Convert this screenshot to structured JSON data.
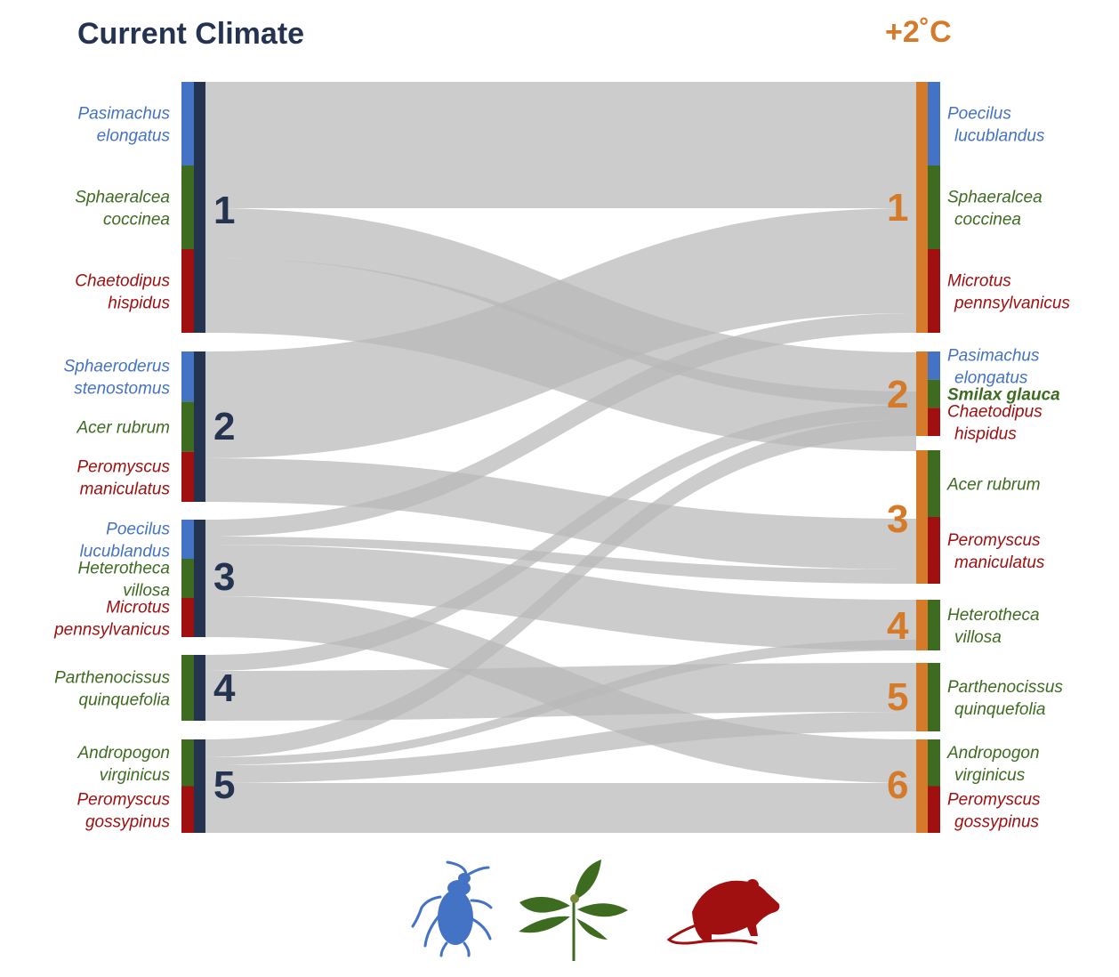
{
  "titles": {
    "current": "Current Climate",
    "future": "+2˚C"
  },
  "colors": {
    "current": "#233350",
    "future": "#d47a29",
    "beetle": "#4472c4",
    "plant": "#3d6b1f",
    "mammal": "#a01010",
    "flow": "#c9c9c9"
  },
  "left_modules": [
    {
      "label": "1",
      "species": [
        {
          "group": "beetle",
          "lines": [
            "Pasimachus",
            "elongatus"
          ]
        },
        {
          "group": "plant",
          "lines": [
            "Sphaeralcea",
            "coccinea"
          ]
        },
        {
          "group": "mammal",
          "lines": [
            "Chaetodipus",
            "hispidus"
          ]
        }
      ]
    },
    {
      "label": "2",
      "species": [
        {
          "group": "beetle",
          "lines": [
            "Sphaeroderus",
            "stenostomus"
          ]
        },
        {
          "group": "plant",
          "lines": [
            "Acer rubrum"
          ]
        },
        {
          "group": "mammal",
          "lines": [
            "Peromyscus",
            "maniculatus"
          ]
        }
      ]
    },
    {
      "label": "3",
      "species": [
        {
          "group": "beetle",
          "lines": [
            "Poecilus",
            "lucublandus"
          ]
        },
        {
          "group": "plant",
          "lines": [
            "Heterotheca",
            "villosa"
          ]
        },
        {
          "group": "mammal",
          "lines": [
            "Microtus",
            "pennsylvanicus"
          ]
        }
      ]
    },
    {
      "label": "4",
      "species": [
        {
          "group": "plant",
          "lines": [
            "Parthenocissus",
            "quinquefolia"
          ]
        }
      ]
    },
    {
      "label": "5",
      "species": [
        {
          "group": "plant",
          "lines": [
            "Andropogon",
            "virginicus"
          ]
        },
        {
          "group": "mammal",
          "lines": [
            "Peromyscus",
            "gossypinus"
          ]
        }
      ]
    }
  ],
  "right_modules": [
    {
      "label": "1",
      "species": [
        {
          "group": "beetle",
          "lines": [
            "Poecilus",
            "lucublandus"
          ]
        },
        {
          "group": "plant",
          "lines": [
            "Sphaeralcea",
            "coccinea"
          ]
        },
        {
          "group": "mammal",
          "lines": [
            "Microtus",
            "pennsylvanicus"
          ]
        }
      ]
    },
    {
      "label": "2",
      "species": [
        {
          "group": "beetle",
          "lines": [
            "Pasimachus",
            "elongatus"
          ]
        },
        {
          "group": "plant",
          "lines": [
            "Smilax glauca"
          ],
          "bold": true
        },
        {
          "group": "mammal",
          "lines": [
            "Chaetodipus",
            "hispidus"
          ]
        }
      ]
    },
    {
      "label": "3",
      "species": [
        {
          "group": "plant",
          "lines": [
            "Acer rubrum"
          ]
        },
        {
          "group": "mammal",
          "lines": [
            "Peromyscus",
            "maniculatus"
          ]
        }
      ]
    },
    {
      "label": "4",
      "species": [
        {
          "group": "plant",
          "lines": [
            "Heterotheca",
            "villosa"
          ]
        }
      ]
    },
    {
      "label": "5",
      "species": [
        {
          "group": "plant",
          "lines": [
            "Parthenocissus",
            "quinquefolia"
          ]
        }
      ]
    },
    {
      "label": "6",
      "species": [
        {
          "group": "plant",
          "lines": [
            "Andropogon",
            "virginicus"
          ]
        },
        {
          "group": "mammal",
          "lines": [
            "Peromyscus",
            "gossypinus"
          ]
        }
      ]
    }
  ],
  "flows": [
    {
      "from": "1",
      "to": "1"
    },
    {
      "from": "1",
      "to": "2"
    },
    {
      "from": "1",
      "to": "3"
    },
    {
      "from": "2",
      "to": "1"
    },
    {
      "from": "2",
      "to": "3"
    },
    {
      "from": "3",
      "to": "1"
    },
    {
      "from": "3",
      "to": "3"
    },
    {
      "from": "3",
      "to": "4"
    },
    {
      "from": "3",
      "to": "6"
    },
    {
      "from": "4",
      "to": "2"
    },
    {
      "from": "4",
      "to": "5"
    },
    {
      "from": "5",
      "to": "2"
    },
    {
      "from": "5",
      "to": "4"
    },
    {
      "from": "5",
      "to": "5"
    },
    {
      "from": "5",
      "to": "6"
    }
  ],
  "icons": [
    "beetle-icon",
    "plant-icon",
    "mammal-icon"
  ]
}
